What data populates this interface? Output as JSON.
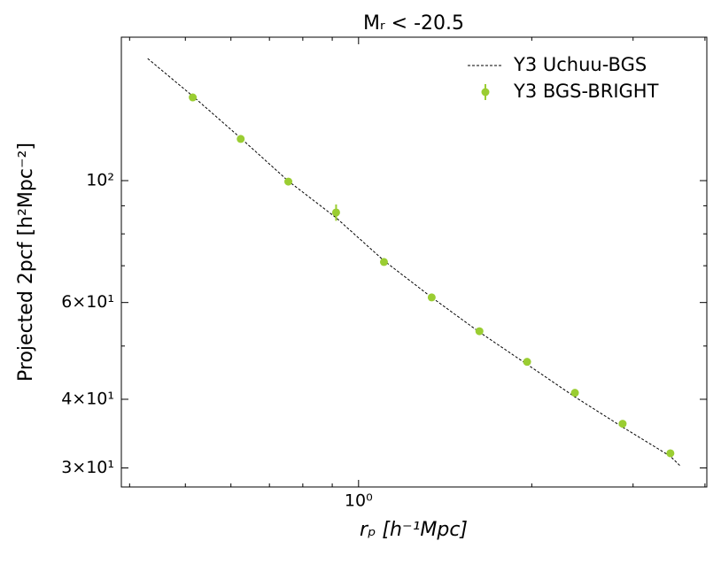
{
  "chart_data": {
    "type": "line",
    "title": "Mᵣ < -20.5",
    "xlabel": "rₚ [h⁻¹Mpc]",
    "ylabel": "Projected 2pcf [h²Mpc⁻²]",
    "xscale": "log",
    "yscale": "log",
    "xlim": [
      0.387,
      4.03
    ],
    "ylim": [
      27.7,
      182.4
    ],
    "xticks": [
      {
        "value": 1,
        "label": "10⁰"
      }
    ],
    "xminorticks": [
      0.4,
      0.5,
      0.6,
      0.7,
      0.8,
      0.9,
      2,
      3,
      4
    ],
    "yticks": [
      {
        "value": 30,
        "label": "3×10¹"
      },
      {
        "value": 40,
        "label": "4×10¹"
      },
      {
        "value": 60,
        "label": "6×10¹"
      },
      {
        "value": 100,
        "label": "10²"
      }
    ],
    "yminorticks": [
      50,
      70,
      80,
      90
    ],
    "legend": "upper right",
    "series": [
      {
        "name": "Y3 Uchuu-BGS",
        "type": "line",
        "color": "#000000",
        "x": [
          0.43,
          0.515,
          0.624,
          0.755,
          0.914,
          1.107,
          1.34,
          1.622,
          1.963,
          2.377,
          2.877,
          3.483,
          3.63
        ],
        "values": [
          166.8,
          142.5,
          119.5,
          99.8,
          85.6,
          71.5,
          61.3,
          53.0,
          46.3,
          40.4,
          35.6,
          31.5,
          30.2
        ]
      },
      {
        "name": "Y3 BGS-BRIGHT",
        "type": "errorbar",
        "color": "#9acd32",
        "x": [
          0.515,
          0.624,
          0.755,
          0.914,
          1.107,
          1.34,
          1.622,
          1.963,
          2.377,
          2.877,
          3.483
        ],
        "values": [
          141.7,
          119.1,
          99.6,
          87.5,
          71.1,
          61.3,
          53.2,
          46.8,
          41.1,
          36.1,
          31.9
        ],
        "errors": [
          1.2,
          1.0,
          1.0,
          3.0,
          0.8,
          0.6,
          0.5,
          0.5,
          0.4,
          0.4,
          0.4
        ]
      }
    ]
  }
}
